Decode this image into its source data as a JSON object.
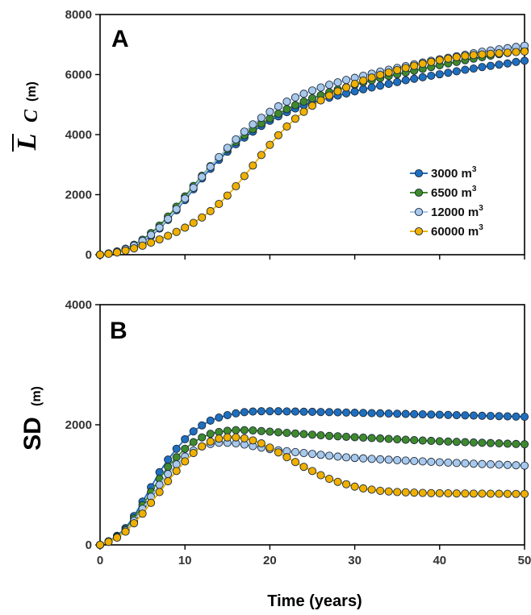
{
  "chart_data": [
    {
      "panel": "A",
      "type": "line",
      "ylabel_main": "L",
      "ylabel_sub": "C",
      "ylabel_unit": "(m)",
      "xlim": [
        0,
        50
      ],
      "ylim": [
        0,
        8000
      ],
      "yticks": [
        "0",
        "2000",
        "4000",
        "6000",
        "8000"
      ],
      "xticks_minor_only": true,
      "legend_position": "right-middle",
      "series": [
        {
          "name": "3000 m",
          "sup": "3",
          "color": "#1f6fc0",
          "values": [
            0,
            38,
            95,
            170,
            280,
            430,
            620,
            870,
            1160,
            1480,
            1820,
            2180,
            2540,
            2860,
            3160,
            3430,
            3680,
            3900,
            4100,
            4290,
            4460,
            4610,
            4750,
            4870,
            4980,
            5070,
            5150,
            5230,
            5300,
            5370,
            5440,
            5510,
            5570,
            5630,
            5690,
            5750,
            5810,
            5860,
            5910,
            5960,
            6010,
            6060,
            6110,
            6160,
            6200,
            6250,
            6290,
            6330,
            6370,
            6420,
            6460
          ]
        },
        {
          "name": "6500 m",
          "sup": "3",
          "color": "#3f8a2c",
          "values": [
            0,
            42,
            108,
            200,
            330,
            500,
            720,
            970,
            1270,
            1600,
            1940,
            2290,
            2630,
            2950,
            3240,
            3510,
            3760,
            3980,
            4180,
            4370,
            4540,
            4700,
            4850,
            4980,
            5100,
            5210,
            5310,
            5410,
            5500,
            5580,
            5660,
            5740,
            5810,
            5880,
            5950,
            6010,
            6070,
            6130,
            6190,
            6250,
            6310,
            6370,
            6420,
            6480,
            6530,
            6580,
            6630,
            6680,
            6720,
            6770,
            6820
          ]
        },
        {
          "name": "12000 m",
          "sup": "3",
          "color": "#a8c8ec",
          "values": [
            0,
            40,
            100,
            185,
            300,
            460,
            660,
            900,
            1190,
            1520,
            1870,
            2230,
            2590,
            2930,
            3250,
            3560,
            3840,
            4100,
            4340,
            4560,
            4760,
            4940,
            5100,
            5240,
            5360,
            5470,
            5570,
            5660,
            5740,
            5820,
            5890,
            5960,
            6030,
            6100,
            6160,
            6220,
            6280,
            6340,
            6400,
            6460,
            6510,
            6560,
            6610,
            6660,
            6710,
            6760,
            6800,
            6840,
            6880,
            6920,
            6960
          ]
        },
        {
          "name": "60000 m",
          "sup": "3",
          "color": "#f0b000",
          "values": [
            0,
            30,
            75,
            135,
            210,
            300,
            400,
            510,
            630,
            760,
            900,
            1060,
            1240,
            1450,
            1690,
            1970,
            2280,
            2620,
            2970,
            3320,
            3660,
            3980,
            4270,
            4530,
            4760,
            4960,
            5140,
            5300,
            5440,
            5570,
            5690,
            5800,
            5900,
            5990,
            6070,
            6150,
            6220,
            6290,
            6360,
            6420,
            6480,
            6530,
            6580,
            6620,
            6650,
            6670,
            6690,
            6710,
            6730,
            6750,
            6770
          ]
        }
      ]
    },
    {
      "panel": "B",
      "type": "line",
      "ylabel": "SD",
      "ylabel_unit": "(m)",
      "xlabel": "Time (years)",
      "xlim": [
        0,
        50
      ],
      "ylim": [
        0,
        4000
      ],
      "xticks": [
        "0",
        "10",
        "20",
        "30",
        "40",
        "50"
      ],
      "yticks": [
        "0",
        "2000",
        "4000"
      ],
      "series": [
        {
          "name": "3000 m",
          "color": "#1f6fc0",
          "values": [
            0,
            60,
            150,
            280,
            480,
            720,
            960,
            1210,
            1420,
            1600,
            1760,
            1890,
            1990,
            2070,
            2120,
            2160,
            2190,
            2210,
            2220,
            2225,
            2225,
            2225,
            2222,
            2220,
            2218,
            2215,
            2212,
            2210,
            2207,
            2204,
            2200,
            2197,
            2194,
            2190,
            2187,
            2184,
            2180,
            2177,
            2174,
            2170,
            2167,
            2164,
            2160,
            2157,
            2154,
            2150,
            2147,
            2144,
            2140,
            2137,
            2134
          ]
        },
        {
          "name": "6500 m",
          "color": "#3f8a2c",
          "values": [
            0,
            58,
            140,
            260,
            440,
            660,
            880,
            1100,
            1300,
            1460,
            1600,
            1710,
            1790,
            1850,
            1880,
            1900,
            1910,
            1910,
            1905,
            1895,
            1885,
            1875,
            1865,
            1855,
            1845,
            1835,
            1825,
            1815,
            1808,
            1800,
            1793,
            1786,
            1779,
            1772,
            1765,
            1758,
            1751,
            1744,
            1738,
            1732,
            1726,
            1720,
            1715,
            1710,
            1705,
            1700,
            1695,
            1690,
            1685,
            1680,
            1675
          ]
        },
        {
          "name": "12000 m",
          "color": "#a8c8ec",
          "values": [
            0,
            55,
            130,
            240,
            400,
            600,
            800,
            1000,
            1180,
            1340,
            1470,
            1570,
            1640,
            1680,
            1700,
            1700,
            1690,
            1670,
            1645,
            1620,
            1595,
            1575,
            1560,
            1545,
            1530,
            1515,
            1500,
            1485,
            1470,
            1458,
            1448,
            1440,
            1432,
            1425,
            1418,
            1411,
            1404,
            1397,
            1390,
            1383,
            1376,
            1370,
            1364,
            1358,
            1352,
            1346,
            1341,
            1336,
            1331,
            1326,
            1320
          ]
        },
        {
          "name": "60000 m",
          "color": "#f0b000",
          "values": [
            0,
            50,
            120,
            220,
            360,
            520,
            700,
            880,
            1060,
            1230,
            1390,
            1530,
            1640,
            1720,
            1770,
            1790,
            1790,
            1775,
            1740,
            1690,
            1620,
            1540,
            1460,
            1380,
            1300,
            1230,
            1160,
            1100,
            1050,
            1010,
            970,
            940,
            920,
            900,
            890,
            880,
            875,
            870,
            865,
            862,
            860,
            858,
            856,
            855,
            854,
            853,
            852,
            851,
            850,
            849,
            848
          ]
        }
      ]
    }
  ]
}
